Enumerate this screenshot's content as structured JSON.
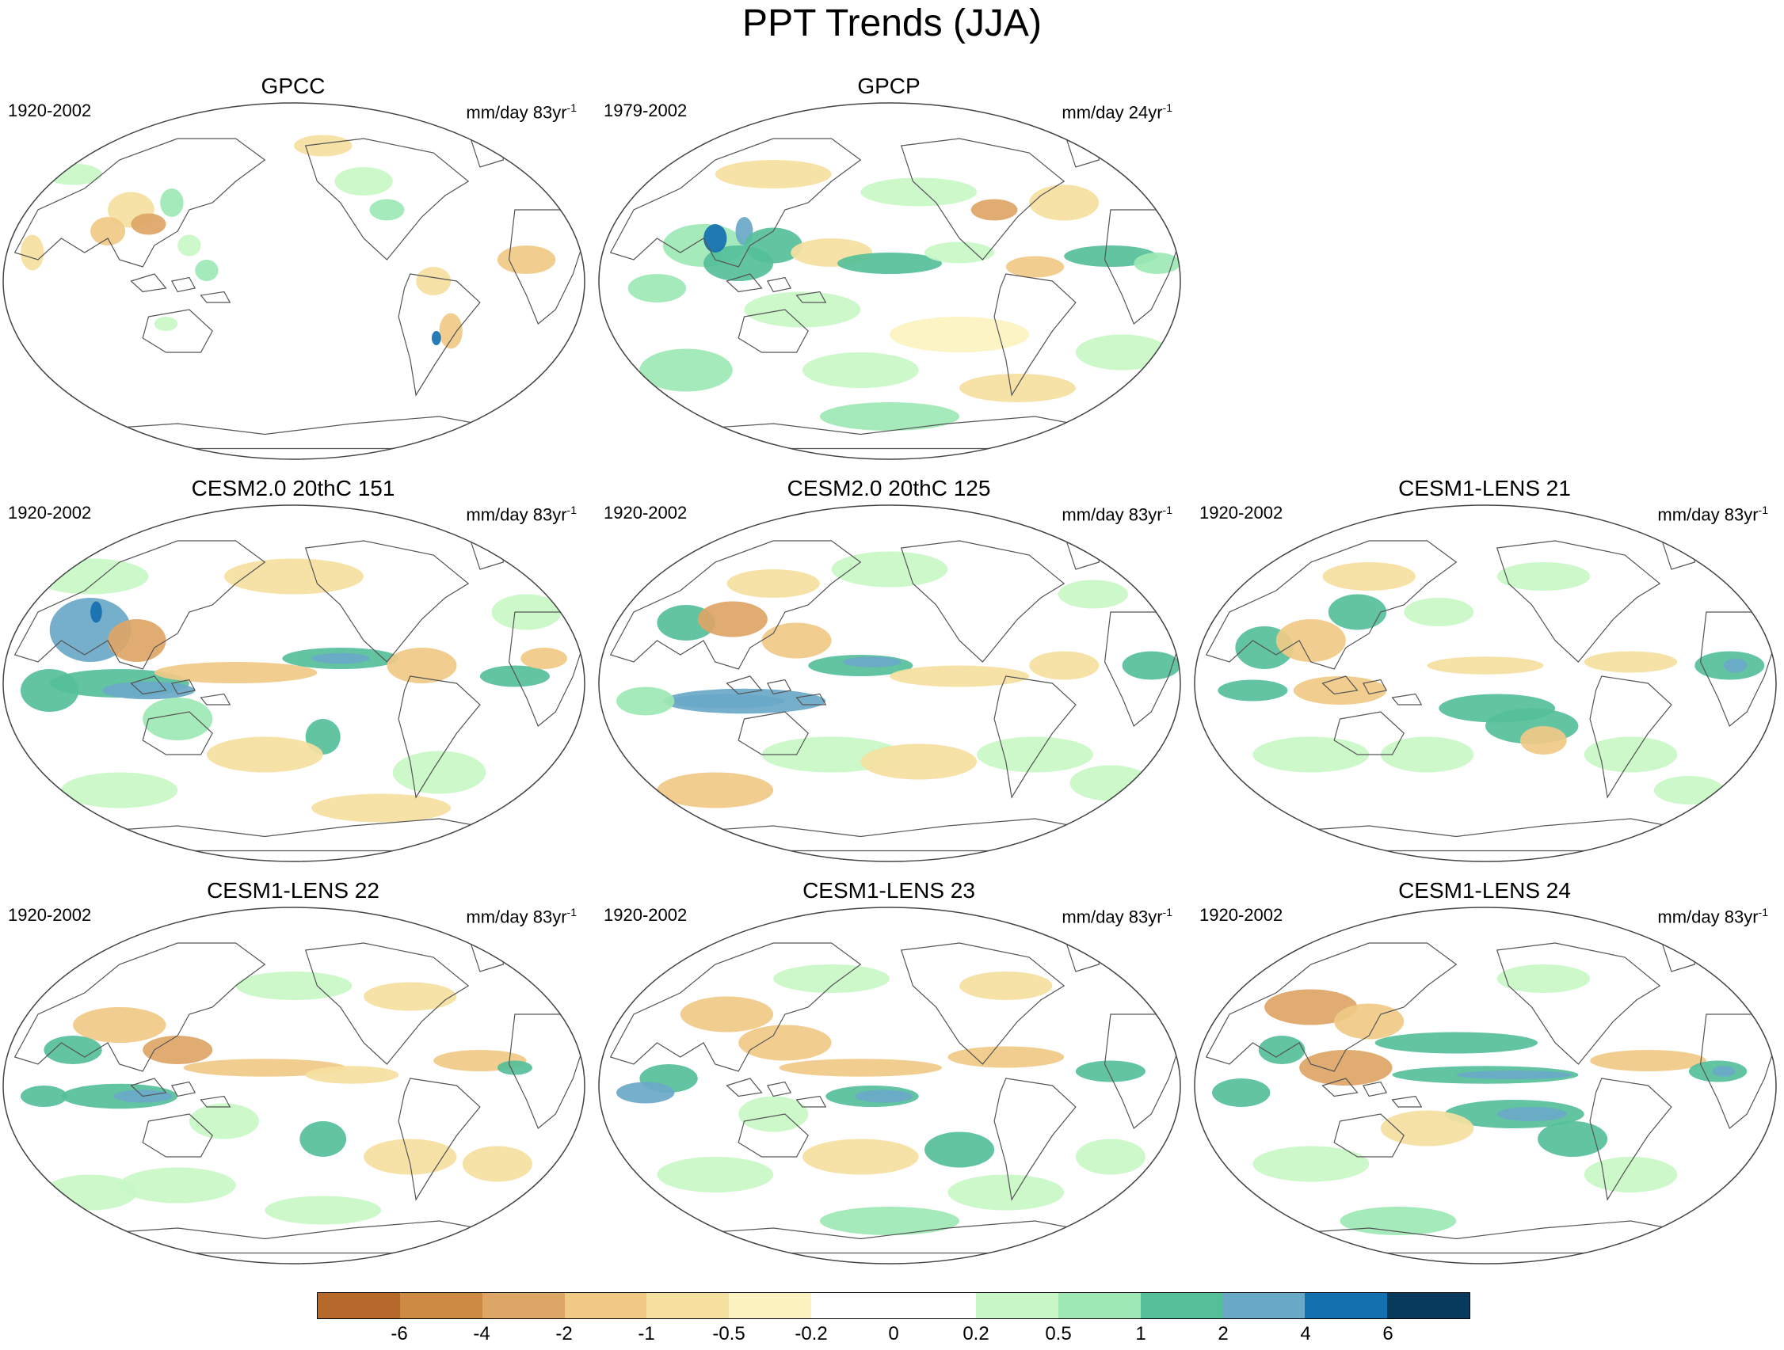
{
  "figure_title": "PPT Trends (JJA)",
  "panels": [
    {
      "title": "GPCC",
      "period": "1920-2002",
      "units": "mm/day 83yr",
      "units_exp": "-1",
      "style": "obs_land"
    },
    {
      "title": "GPCP",
      "period": "1979-2002",
      "units": "mm/day 24yr",
      "units_exp": "-1",
      "style": "obs_global"
    },
    {
      "title": "CESM2.0 20thC 151",
      "period": "1920-2002",
      "units": "mm/day 83yr",
      "units_exp": "-1",
      "style": "model_a"
    },
    {
      "title": "CESM2.0 20thC 125",
      "period": "1920-2002",
      "units": "mm/day 83yr",
      "units_exp": "-1",
      "style": "model_b"
    },
    {
      "title": "CESM1-LENS 21",
      "period": "1920-2002",
      "units": "mm/day 83yr",
      "units_exp": "-1",
      "style": "model_c"
    },
    {
      "title": "CESM1-LENS 22",
      "period": "1920-2002",
      "units": "mm/day 83yr",
      "units_exp": "-1",
      "style": "model_d"
    },
    {
      "title": "CESM1-LENS 23",
      "period": "1920-2002",
      "units": "mm/day 83yr",
      "units_exp": "-1",
      "style": "model_e"
    },
    {
      "title": "CESM1-LENS 24",
      "period": "1920-2002",
      "units": "mm/day 83yr",
      "units_exp": "-1",
      "style": "model_f"
    }
  ],
  "colorbar": {
    "colors": [
      "#b5692a",
      "#cc8a45",
      "#dda566",
      "#f0c985",
      "#f5e0a0",
      "#fcf3c0",
      "#ffffff",
      "#ffffff",
      "#c8f7c5",
      "#9de8b4",
      "#55bf99",
      "#6aa8c8",
      "#1570b0",
      "#083a5c"
    ],
    "ticks": [
      "-6",
      "-4",
      "-2",
      "-1",
      "-0.5",
      "-0.2",
      "0",
      "0.2",
      "0.5",
      "1",
      "2",
      "4",
      "6"
    ]
  }
}
